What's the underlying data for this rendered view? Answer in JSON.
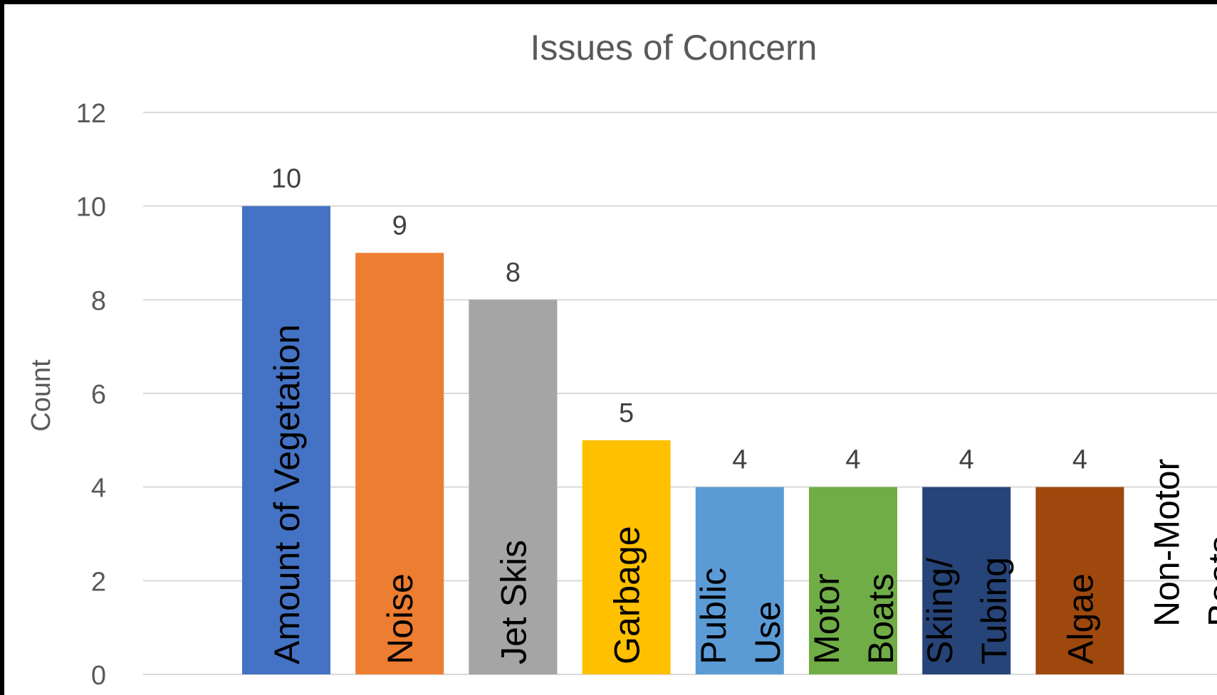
{
  "chart_data": {
    "type": "bar",
    "title": "Issues of Concern",
    "xlabel": "",
    "ylabel": "Count",
    "ylim": [
      0,
      12
    ],
    "yticks": [
      0,
      2,
      4,
      6,
      8,
      10,
      12
    ],
    "grid": true,
    "categories": [
      [
        "Amount of Vegetation"
      ],
      [
        "Noise"
      ],
      [
        "Jet Skis"
      ],
      [
        "Garbage"
      ],
      [
        "Public",
        "Use"
      ],
      [
        "Motor",
        "Boats"
      ],
      [
        "Skiing/",
        "Tubing"
      ],
      [
        "Algae"
      ],
      [
        "Non-Motor",
        "Boats"
      ]
    ],
    "values": [
      10,
      9,
      8,
      5,
      4,
      4,
      4,
      4,
      0
    ],
    "colors": [
      "#4472c4",
      "#ed7d31",
      "#a5a5a5",
      "#ffc000",
      "#5b9bd5",
      "#70ad47",
      "#264478",
      "#9e480e",
      "#636363"
    ]
  }
}
